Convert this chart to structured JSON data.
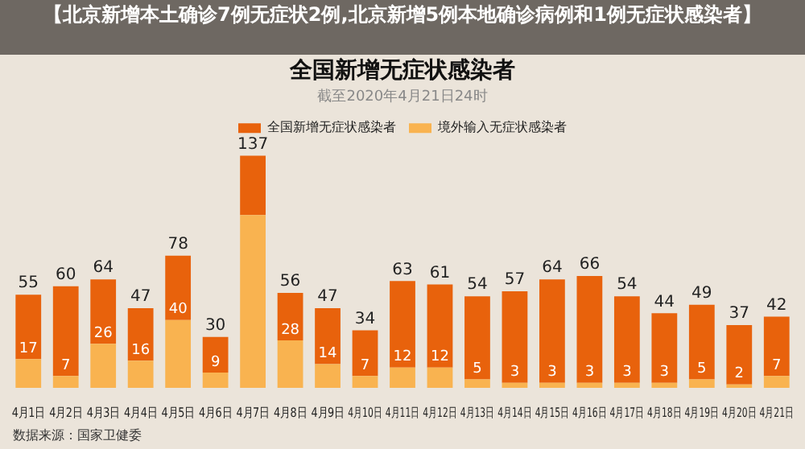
{
  "chart_data": {
    "type": "bar",
    "title": "全国新增无症状感染者",
    "subtitle": "截至2020年4月21日24时",
    "categories": [
      "4月1日",
      "4月2日",
      "4月3日",
      "4月4日",
      "4月5日",
      "4月6日",
      "4月7日",
      "4月8日",
      "4月9日",
      "4月10日",
      "4月11日",
      "4月12日",
      "4月13日",
      "4月14日",
      "4月15日",
      "4月16日",
      "4月17日",
      "4月18日",
      "4月19日",
      "4月20日",
      "4月21日"
    ],
    "stacked": true,
    "series": [
      {
        "name": "境外输入无症状感染者",
        "color": "#f9b350",
        "values": [
          17,
          7,
          26,
          16,
          40,
          9,
          102,
          28,
          14,
          7,
          12,
          12,
          5,
          3,
          3,
          3,
          3,
          3,
          5,
          2,
          7
        ],
        "value_labels": [
          "17",
          "7",
          "26",
          "16",
          "40",
          "9",
          null,
          "28",
          "14",
          "7",
          "12",
          "12",
          "5",
          "3",
          "3",
          "3",
          "3",
          "3",
          "5",
          "2",
          "7"
        ]
      },
      {
        "name": "全国新增无症状感染者",
        "color": "#e8620c",
        "values": [
          38,
          53,
          38,
          31,
          38,
          21,
          35,
          28,
          33,
          27,
          51,
          49,
          49,
          54,
          61,
          63,
          51,
          41,
          44,
          35,
          35
        ]
      }
    ],
    "totals": [
      "55",
      "60",
      "64",
      "47",
      "78",
      "30",
      "137",
      "56",
      "47",
      "34",
      "63",
      "61",
      "54",
      "57",
      "64",
      "66",
      "54",
      "44",
      "49",
      "37",
      "42"
    ],
    "legend": "top",
    "grid": false,
    "annotations": [
      "【北京新增本土确诊7例无症状2例,北京新增5例本地确诊病例和1例无症状感染者】",
      "数据来源：国家卫健委"
    ]
  }
}
